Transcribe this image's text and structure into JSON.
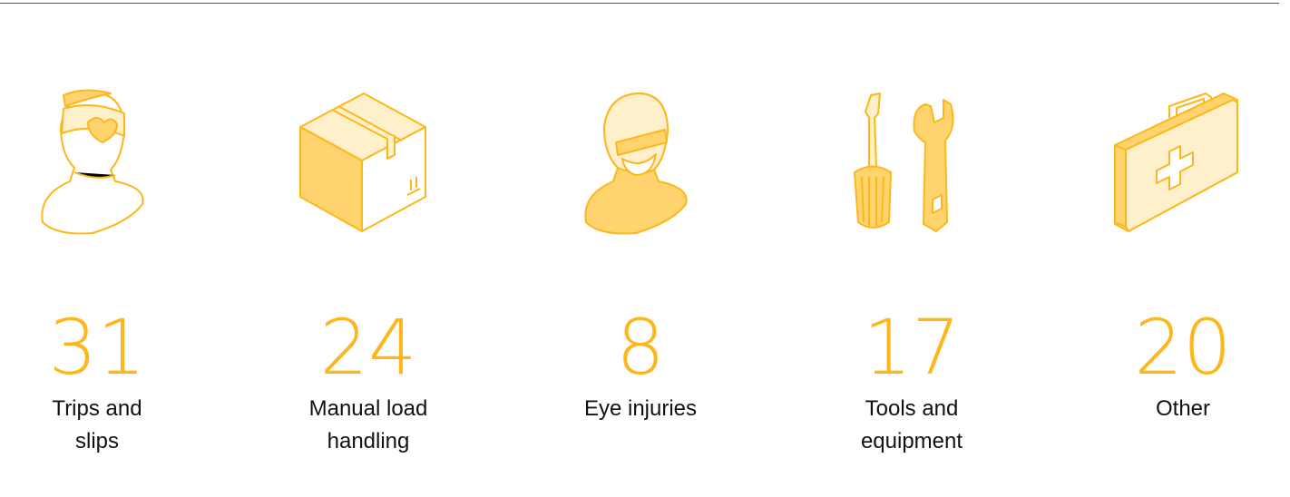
{
  "colors": {
    "accent": "#FDB71A",
    "light_fill": "#FFF0CC",
    "mid_fill": "#FFD36E"
  },
  "stats": [
    {
      "value": "31",
      "label": "Trips and slips",
      "icon": "bandaged-head-icon"
    },
    {
      "value": "24",
      "label": "Manual load handling",
      "icon": "cardboard-box-icon"
    },
    {
      "value": "8",
      "label": "Eye injuries",
      "icon": "person-goggles-icon"
    },
    {
      "value": "17",
      "label": "Tools and equipment",
      "icon": "screwdriver-wrench-icon"
    },
    {
      "value": "20",
      "label": "Other",
      "icon": "first-aid-kit-icon"
    }
  ]
}
